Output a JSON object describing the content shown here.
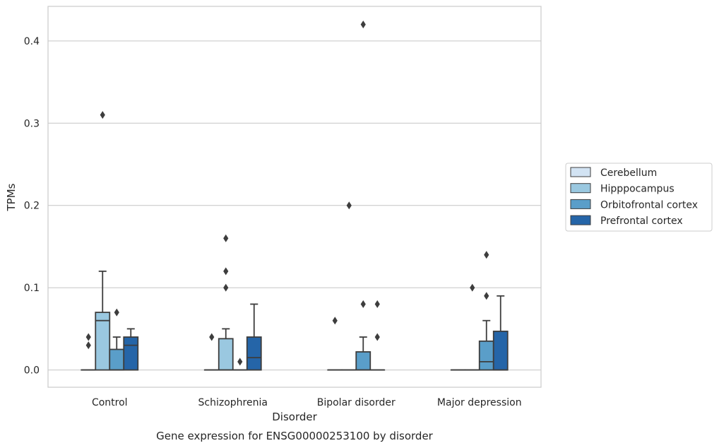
{
  "chart_data": {
    "type": "box",
    "title": "Gene expression for ENSG00000253100 by disorder",
    "xlabel": "Disorder",
    "ylabel": "TPMs",
    "ylim": [
      -0.021,
      0.442
    ],
    "yticks": [
      "0.0",
      "0.1",
      "0.2",
      "0.3",
      "0.4"
    ],
    "grid": "horizontal",
    "legend_position": "right",
    "categories": [
      "Control",
      "Schizophrenia",
      "Bipolar disorder",
      "Major depression"
    ],
    "series": [
      {
        "name": "Cerebellum",
        "color": "#d2e3f3",
        "boxes": [
          {
            "q1": 0,
            "median": 0,
            "q3": 0,
            "whislo": 0,
            "whishi": 0,
            "fliers": []
          },
          {
            "q1": 0,
            "median": 0,
            "q3": 0,
            "whislo": 0,
            "whishi": 0,
            "fliers": []
          },
          {
            "q1": 0,
            "median": 0,
            "q3": 0,
            "whislo": 0,
            "whishi": 0,
            "fliers": []
          },
          {
            "q1": 0,
            "median": 0,
            "q3": 0,
            "whislo": 0,
            "whishi": 0,
            "fliers": []
          }
        ]
      },
      {
        "name": "Hipppocampus",
        "color": "#9ac8e0",
        "boxes": [
          {
            "q1": 0,
            "median": 0.06,
            "q3": 0.07,
            "whislo": 0,
            "whishi": 0.12,
            "fliers": [
              0.31
            ]
          },
          {
            "q1": 0,
            "median": 0,
            "q3": 0.038,
            "whislo": 0,
            "whishi": 0.05,
            "fliers": [
              0.1,
              0.12,
              0.16
            ]
          },
          {
            "q1": 0,
            "median": 0,
            "q3": 0,
            "whislo": 0,
            "whishi": 0,
            "fliers": [
              0.2
            ]
          },
          {
            "q1": 0,
            "median": 0,
            "q3": 0,
            "whislo": 0,
            "whishi": 0,
            "fliers": [
              0.1
            ]
          }
        ]
      },
      {
        "name": "Orbitofrontal cortex",
        "color": "#5a9ec9",
        "boxes": [
          {
            "q1": 0,
            "median": 0,
            "q3": 0.025,
            "whislo": 0,
            "whishi": 0.04,
            "fliers": [
              0.07
            ]
          },
          {
            "q1": 0,
            "median": 0,
            "q3": 0,
            "whislo": 0,
            "whishi": 0,
            "fliers": [
              0.01
            ]
          },
          {
            "q1": 0,
            "median": 0,
            "q3": 0.022,
            "whislo": 0,
            "whishi": 0.04,
            "fliers": [
              0.08,
              0.42
            ]
          },
          {
            "q1": 0,
            "median": 0.01,
            "q3": 0.035,
            "whislo": 0,
            "whishi": 0.06,
            "fliers": [
              0.09,
              0.14
            ]
          }
        ]
      },
      {
        "name": "Prefrontal cortex",
        "color": "#2565a8",
        "boxes": [
          {
            "q1": 0,
            "median": 0.03,
            "q3": 0.04,
            "whislo": 0,
            "whishi": 0.05,
            "fliers": []
          },
          {
            "q1": 0,
            "median": 0.015,
            "q3": 0.04,
            "whislo": 0,
            "whishi": 0.08,
            "fliers": []
          },
          {
            "q1": 0,
            "median": 0,
            "q3": 0,
            "whislo": 0,
            "whishi": 0,
            "fliers": [
              0.04,
              0.08
            ]
          },
          {
            "q1": 0,
            "median": 0,
            "q3": 0.047,
            "whislo": 0,
            "whishi": 0.09,
            "fliers": []
          }
        ]
      }
    ],
    "extra_fliers": [
      {
        "category": 0,
        "series": 0,
        "values": [
          0.03,
          0.04
        ]
      },
      {
        "category": 1,
        "series": 0,
        "values": [
          0.04
        ]
      },
      {
        "category": 2,
        "series": 0,
        "values": [
          0.06
        ]
      }
    ]
  }
}
